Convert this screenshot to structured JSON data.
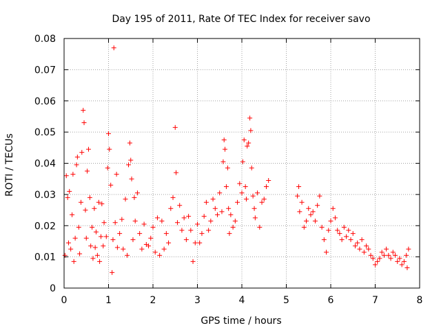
{
  "chart_data": {
    "type": "scatter",
    "title": "Day 195 of 2011, Rate Of TEC Index for receiver savo",
    "xlabel": "GPS time / hours",
    "ylabel": "ROTI / TECUs",
    "xlim": [
      0,
      8
    ],
    "ylim": [
      0,
      0.08
    ],
    "xticks": [
      0,
      1,
      2,
      3,
      4,
      5,
      6,
      7,
      8
    ],
    "yticks": [
      0,
      0.01,
      0.02,
      0.03,
      0.04,
      0.05,
      0.06,
      0.07,
      0.08
    ],
    "xtick_labels": [
      "0",
      "1",
      "2",
      "3",
      "4",
      "5",
      "6",
      "7",
      "8"
    ],
    "ytick_labels": [
      "0",
      "0.01",
      "0.02",
      "0.03",
      "0.04",
      "0.05",
      "0.06",
      "0.07",
      "0.08"
    ],
    "grid": true,
    "marker": "+",
    "marker_color": "#ff0000",
    "series": [
      {
        "name": "ROTI",
        "points": [
          [
            0.02,
            0.0105
          ],
          [
            0.05,
            0.036
          ],
          [
            0.08,
            0.029
          ],
          [
            0.1,
            0.0145
          ],
          [
            0.12,
            0.031
          ],
          [
            0.15,
            0.0125
          ],
          [
            0.18,
            0.0235
          ],
          [
            0.2,
            0.0365
          ],
          [
            0.22,
            0.0085
          ],
          [
            0.25,
            0.016
          ],
          [
            0.28,
            0.0395
          ],
          [
            0.3,
            0.042
          ],
          [
            0.33,
            0.0195
          ],
          [
            0.35,
            0.011
          ],
          [
            0.38,
            0.0275
          ],
          [
            0.4,
            0.0435
          ],
          [
            0.43,
            0.057
          ],
          [
            0.45,
            0.053
          ],
          [
            0.48,
            0.025
          ],
          [
            0.5,
            0.016
          ],
          [
            0.52,
            0.0375
          ],
          [
            0.55,
            0.0445
          ],
          [
            0.58,
            0.029
          ],
          [
            0.6,
            0.0135
          ],
          [
            0.63,
            0.0195
          ],
          [
            0.65,
            0.0095
          ],
          [
            0.68,
            0.0255
          ],
          [
            0.7,
            0.013
          ],
          [
            0.72,
            0.018
          ],
          [
            0.75,
            0.0105
          ],
          [
            0.78,
            0.0275
          ],
          [
            0.8,
            0.0085
          ],
          [
            0.83,
            0.0165
          ],
          [
            0.85,
            0.027
          ],
          [
            0.88,
            0.0135
          ],
          [
            0.9,
            0.021
          ],
          [
            0.95,
            0.0165
          ],
          [
            0.98,
            0.0385
          ],
          [
            1.0,
            0.0495
          ],
          [
            1.02,
            0.0445
          ],
          [
            1.05,
            0.033
          ],
          [
            1.08,
            0.005
          ],
          [
            1.1,
            0.0155
          ],
          [
            1.12,
            0.077
          ],
          [
            1.15,
            0.021
          ],
          [
            1.18,
            0.0365
          ],
          [
            1.2,
            0.013
          ],
          [
            1.25,
            0.0175
          ],
          [
            1.3,
            0.022
          ],
          [
            1.33,
            0.0125
          ],
          [
            1.38,
            0.0285
          ],
          [
            1.42,
            0.0105
          ],
          [
            1.45,
            0.0395
          ],
          [
            1.48,
            0.0465
          ],
          [
            1.5,
            0.041
          ],
          [
            1.52,
            0.035
          ],
          [
            1.55,
            0.0155
          ],
          [
            1.58,
            0.029
          ],
          [
            1.6,
            0.0215
          ],
          [
            1.65,
            0.0305
          ],
          [
            1.7,
            0.0175
          ],
          [
            1.75,
            0.0125
          ],
          [
            1.8,
            0.0205
          ],
          [
            1.85,
            0.014
          ],
          [
            1.9,
            0.0135
          ],
          [
            1.95,
            0.016
          ],
          [
            2.0,
            0.0195
          ],
          [
            2.05,
            0.0115
          ],
          [
            2.1,
            0.0225
          ],
          [
            2.15,
            0.0105
          ],
          [
            2.2,
            0.0215
          ],
          [
            2.25,
            0.0125
          ],
          [
            2.3,
            0.0175
          ],
          [
            2.35,
            0.0145
          ],
          [
            2.4,
            0.0255
          ],
          [
            2.45,
            0.029
          ],
          [
            2.5,
            0.0515
          ],
          [
            2.52,
            0.037
          ],
          [
            2.55,
            0.021
          ],
          [
            2.6,
            0.0265
          ],
          [
            2.65,
            0.0185
          ],
          [
            2.7,
            0.0225
          ],
          [
            2.75,
            0.0155
          ],
          [
            2.8,
            0.023
          ],
          [
            2.85,
            0.0185
          ],
          [
            2.9,
            0.0085
          ],
          [
            2.95,
            0.0145
          ],
          [
            3.0,
            0.0205
          ],
          [
            3.05,
            0.0145
          ],
          [
            3.1,
            0.0175
          ],
          [
            3.15,
            0.023
          ],
          [
            3.2,
            0.0275
          ],
          [
            3.25,
            0.0185
          ],
          [
            3.3,
            0.0215
          ],
          [
            3.35,
            0.0285
          ],
          [
            3.4,
            0.0255
          ],
          [
            3.45,
            0.0235
          ],
          [
            3.5,
            0.0305
          ],
          [
            3.55,
            0.0245
          ],
          [
            3.58,
            0.0405
          ],
          [
            3.6,
            0.0475
          ],
          [
            3.62,
            0.0445
          ],
          [
            3.65,
            0.0325
          ],
          [
            3.68,
            0.0385
          ],
          [
            3.7,
            0.0255
          ],
          [
            3.72,
            0.0175
          ],
          [
            3.75,
            0.0235
          ],
          [
            3.8,
            0.0195
          ],
          [
            3.85,
            0.0215
          ],
          [
            3.9,
            0.0275
          ],
          [
            3.95,
            0.0335
          ],
          [
            4.0,
            0.0305
          ],
          [
            4.02,
            0.0405
          ],
          [
            4.05,
            0.0475
          ],
          [
            4.08,
            0.0325
          ],
          [
            4.1,
            0.0285
          ],
          [
            4.12,
            0.0455
          ],
          [
            4.15,
            0.0465
          ],
          [
            4.18,
            0.0545
          ],
          [
            4.2,
            0.0505
          ],
          [
            4.22,
            0.0385
          ],
          [
            4.25,
            0.0295
          ],
          [
            4.28,
            0.0255
          ],
          [
            4.3,
            0.0225
          ],
          [
            4.35,
            0.0305
          ],
          [
            4.4,
            0.0195
          ],
          [
            4.45,
            0.0275
          ],
          [
            4.5,
            0.0285
          ],
          [
            4.55,
            0.0325
          ],
          [
            4.6,
            0.0345
          ],
          [
            5.25,
            0.0295
          ],
          [
            5.28,
            0.0325
          ],
          [
            5.3,
            0.0245
          ],
          [
            5.35,
            0.0275
          ],
          [
            5.4,
            0.0195
          ],
          [
            5.45,
            0.0215
          ],
          [
            5.5,
            0.0255
          ],
          [
            5.55,
            0.0235
          ],
          [
            5.6,
            0.0245
          ],
          [
            5.65,
            0.0215
          ],
          [
            5.7,
            0.0265
          ],
          [
            5.75,
            0.0295
          ],
          [
            5.8,
            0.0195
          ],
          [
            5.85,
            0.0155
          ],
          [
            5.9,
            0.0115
          ],
          [
            5.95,
            0.0185
          ],
          [
            6.0,
            0.0215
          ],
          [
            6.05,
            0.0255
          ],
          [
            6.1,
            0.0225
          ],
          [
            6.15,
            0.0185
          ],
          [
            6.2,
            0.0175
          ],
          [
            6.25,
            0.0155
          ],
          [
            6.3,
            0.0195
          ],
          [
            6.35,
            0.0165
          ],
          [
            6.4,
            0.0185
          ],
          [
            6.45,
            0.0155
          ],
          [
            6.5,
            0.0175
          ],
          [
            6.55,
            0.0135
          ],
          [
            6.6,
            0.0145
          ],
          [
            6.65,
            0.0125
          ],
          [
            6.7,
            0.0155
          ],
          [
            6.75,
            0.0115
          ],
          [
            6.8,
            0.0135
          ],
          [
            6.85,
            0.0125
          ],
          [
            6.9,
            0.0105
          ],
          [
            6.95,
            0.0095
          ],
          [
            7.0,
            0.0075
          ],
          [
            7.05,
            0.0085
          ],
          [
            7.1,
            0.0095
          ],
          [
            7.15,
            0.0115
          ],
          [
            7.2,
            0.0105
          ],
          [
            7.25,
            0.0125
          ],
          [
            7.3,
            0.0105
          ],
          [
            7.35,
            0.0095
          ],
          [
            7.4,
            0.0115
          ],
          [
            7.45,
            0.0105
          ],
          [
            7.5,
            0.0085
          ],
          [
            7.55,
            0.0095
          ],
          [
            7.6,
            0.0075
          ],
          [
            7.65,
            0.0085
          ],
          [
            7.7,
            0.0105
          ],
          [
            7.72,
            0.0065
          ],
          [
            7.75,
            0.0125
          ]
        ]
      }
    ]
  }
}
